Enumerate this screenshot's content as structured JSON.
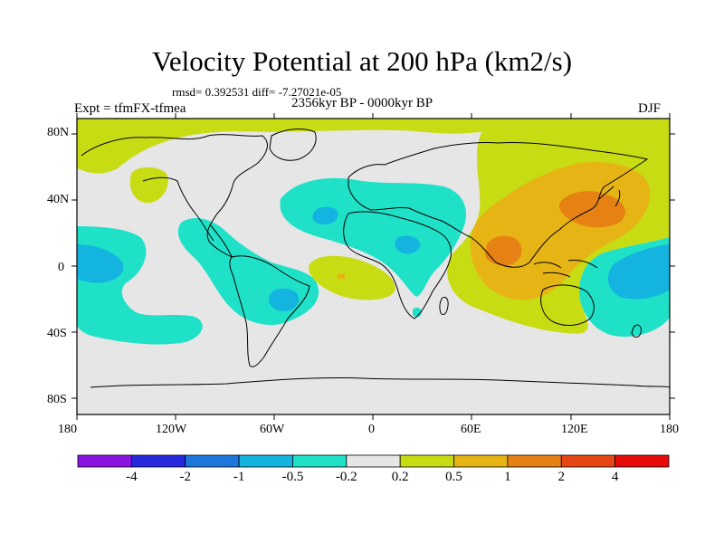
{
  "title": "Velocity Potential at 200 hPa (km2/s)",
  "stats": "rmsd= 0.392531 diff= -7.27021e-05",
  "experiment": "Expt = tfmFX-tfmea",
  "period": "2356kyr BP - 0000kyr BP",
  "season": "DJF",
  "map": {
    "projection": "cylindrical equidistant",
    "lon_range": [
      -180,
      180
    ],
    "lat_range": [
      -90,
      90
    ],
    "lat_ticks": [
      "80N",
      "40N",
      "0",
      "40S",
      "80S"
    ],
    "lon_ticks": [
      "180",
      "120W",
      "60W",
      "0",
      "60E",
      "120E",
      "180"
    ]
  },
  "colorbar": {
    "colors": [
      "#8a14e0",
      "#2828e0",
      "#1e78dc",
      "#14b4e0",
      "#1ee1c8",
      "#e6e6e6",
      "#c8dc14",
      "#e6b414",
      "#e68214",
      "#e64614",
      "#e60a0a"
    ],
    "labels": [
      "-4",
      "-2",
      "-1",
      "-0.5",
      "-0.2",
      "0.2",
      "0.5",
      "1",
      "2",
      "4"
    ]
  }
}
